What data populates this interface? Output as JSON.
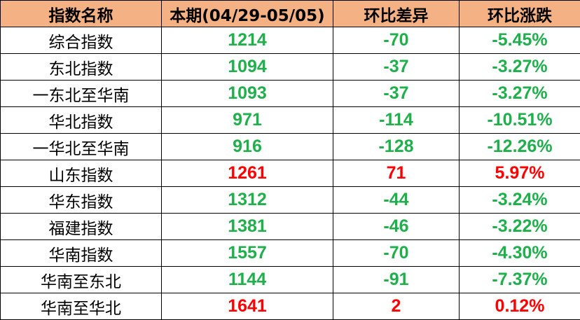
{
  "table": {
    "header": [
      "指数名称",
      "本期(04/29-05/05)",
      "环比差异",
      "环比涨跌"
    ],
    "header_color": "#f4b183",
    "up_color": "#ff0000",
    "down_color": "#1fb04c",
    "rows": [
      [
        "综合指数",
        "1214",
        "-70",
        "-5.45%"
      ],
      [
        "东北指数",
        "1094",
        "-37",
        "-3.27%"
      ],
      [
        "一东北至华南",
        "1093",
        "-37",
        "-3.27%"
      ],
      [
        "华北指数",
        "971",
        "-114",
        "-10.51%"
      ],
      [
        "一华北至华南",
        "916",
        "-128",
        "-12.26%"
      ],
      [
        "山东指数",
        "1261",
        "71",
        "5.97%"
      ],
      [
        "华东指数",
        "1312",
        "-44",
        "-3.24%"
      ],
      [
        "福建指数",
        "1381",
        "-46",
        "-3.22%"
      ],
      [
        "华南指数",
        "1557",
        "-70",
        "-4.30%"
      ],
      [
        "华南至东北",
        "1144",
        "-91",
        "-7.37%"
      ],
      [
        "华南至华北",
        "1641",
        "2",
        "0.12%"
      ]
    ]
  }
}
